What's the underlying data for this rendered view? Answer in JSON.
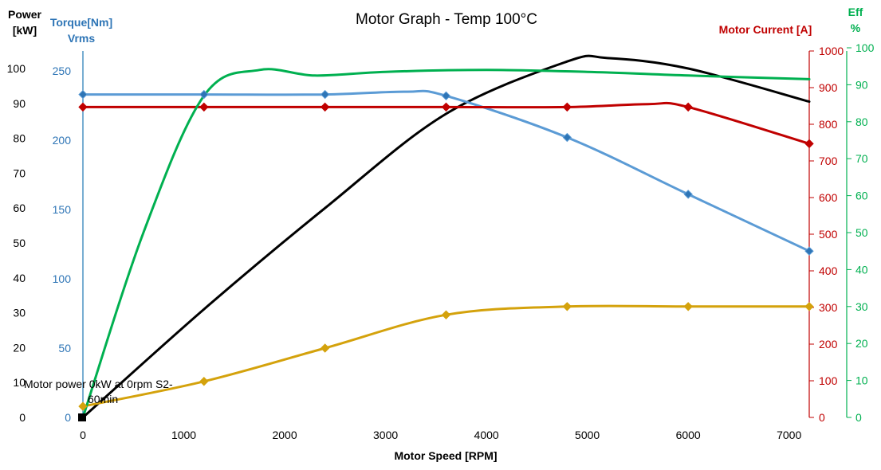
{
  "chart_data": {
    "type": "line",
    "title": "Motor Graph - Temp 100°C",
    "xlabel": "Motor Speed [RPM]",
    "xlim": [
      0,
      7200
    ],
    "x_ticks": [
      0,
      1000,
      2000,
      3000,
      4000,
      5000,
      6000,
      7000
    ],
    "axes": {
      "power": {
        "label_lines": [
          "Power",
          "[kW]"
        ],
        "ylim": [
          0,
          104
        ],
        "ticks": [
          0,
          10,
          20,
          30,
          40,
          50,
          60,
          70,
          80,
          90,
          100
        ],
        "color": "#000000"
      },
      "torque": {
        "label_lines": [
          "Torque[Nm]",
          "Vrms"
        ],
        "ylim": [
          0,
          250
        ],
        "ticks": [
          0,
          50,
          100,
          150,
          200,
          250
        ],
        "color": "#2E75B6"
      },
      "current": {
        "label": "Motor Current [A]",
        "ylim": [
          0,
          1000
        ],
        "ticks": [
          0,
          100,
          200,
          300,
          400,
          500,
          600,
          700,
          800,
          900,
          1000
        ],
        "color": "#C00000"
      },
      "eff": {
        "label_lines": [
          "Eff",
          "%"
        ],
        "ylim": [
          0,
          100
        ],
        "ticks": [
          0,
          10,
          20,
          30,
          40,
          50,
          60,
          70,
          80,
          90,
          100
        ],
        "color": "#00B050"
      }
    },
    "annotation": "Motor power 0kW at 0rpm S2-60min",
    "series": [
      {
        "key": "motor_power",
        "axis": "power",
        "color": "#000000",
        "markers": false,
        "x": [
          0,
          1200,
          2400,
          3600,
          4800,
          5200,
          6000,
          7200
        ],
        "y": [
          0,
          31,
          60,
          87,
          102,
          103,
          100,
          90.5
        ]
      },
      {
        "key": "torque",
        "axis": "torque",
        "color": "#5B9BD5",
        "markers": true,
        "x": [
          0,
          1200,
          2400,
          3200,
          3600,
          4800,
          6000,
          7200
        ],
        "y": [
          233,
          233,
          233,
          235,
          232,
          202,
          161,
          120
        ]
      },
      {
        "key": "voltage",
        "axis": "torque",
        "color": "#D4A20C",
        "markers": true,
        "x": [
          0,
          1200,
          2400,
          3600,
          4800,
          6000,
          7200
        ],
        "y": [
          8,
          26,
          50,
          74,
          80,
          80,
          80
        ]
      },
      {
        "key": "current",
        "axis": "current",
        "color": "#C00000",
        "markers": true,
        "x": [
          0,
          1200,
          2400,
          3600,
          4800,
          5600,
          6000,
          7200
        ],
        "y": [
          847,
          847,
          847,
          847,
          847,
          855,
          847,
          747
        ]
      },
      {
        "key": "efficiency",
        "axis": "eff",
        "color": "#00B050",
        "markers": false,
        "x": [
          0,
          600,
          1200,
          1750,
          2300,
          3000,
          4000,
          5000,
          6000,
          7200
        ],
        "y": [
          0,
          50,
          87,
          94,
          92.5,
          93.5,
          94,
          93.5,
          92.5,
          91.5
        ]
      }
    ]
  }
}
